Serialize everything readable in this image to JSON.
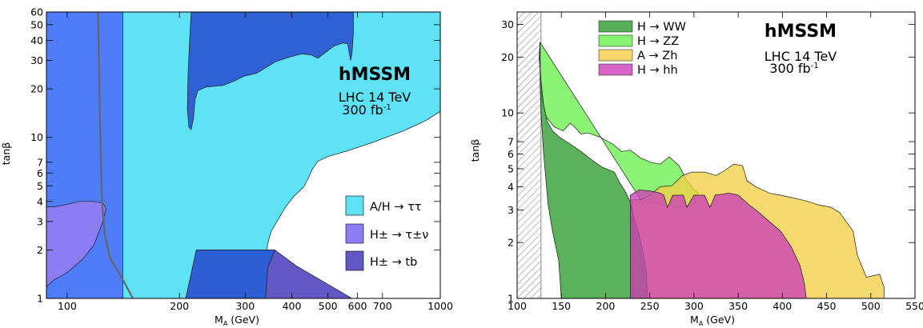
{
  "chart_data": [
    {
      "type": "area",
      "title": "hMSSM",
      "subtitle": [
        "LHC 14 TeV",
        "300 fb"
      ],
      "lumi_exp": "-1",
      "xlabel": "M",
      "xlabel_sub": "A",
      "xlabel_unit": " (GeV)",
      "ylabel": "tanβ",
      "xscale": "log",
      "yscale": "log",
      "xlim": [
        88,
        1000
      ],
      "ylim": [
        1,
        60
      ],
      "x_ticks": [
        100,
        200,
        300,
        400,
        500,
        600,
        700,
        1000
      ],
      "x_tick_labels": [
        "100",
        "200",
        "300",
        "400",
        "500",
        "600",
        "700",
        "1000"
      ],
      "y_ticks": [
        1,
        2,
        3,
        4,
        5,
        6,
        7,
        10,
        20,
        30,
        40,
        50,
        60
      ],
      "y_tick_labels": [
        "1",
        "2",
        "3",
        "4",
        "5",
        "6",
        "7",
        "10",
        "20",
        "30",
        "40",
        "50",
        "60"
      ],
      "legend_position": "bottom-right",
      "legend": [
        {
          "label": "A/H → ττ",
          "color": "#60E2F6"
        },
        {
          "label": "H± → τ±ν",
          "color": "#8C7DF4"
        },
        {
          "label": "H± → tb",
          "color": "#6257C4"
        }
      ],
      "regions": [
        {
          "name": "A/H → ττ",
          "color": "#60E2F6",
          "points": [
            [
              88,
              1
            ],
            [
              88,
              60
            ],
            [
              1000,
              60
            ],
            [
              1000,
              14.5
            ],
            [
              920,
              12.8
            ],
            [
              800,
              11
            ],
            [
              650,
              9.2
            ],
            [
              560,
              8.2
            ],
            [
              500,
              7.6
            ],
            [
              470,
              7.1
            ],
            [
              455,
              6.4
            ],
            [
              440,
              5.4
            ],
            [
              430,
              4.9
            ],
            [
              405,
              4.3
            ],
            [
              385,
              3.7
            ],
            [
              365,
              3
            ],
            [
              352,
              2.6
            ],
            [
              345,
              2.2
            ],
            [
              343,
              2
            ],
            [
              342,
              1.5
            ],
            [
              340,
              1
            ]
          ]
        },
        {
          "name": "low-mass exclusion",
          "color": "#4F7CF9",
          "points": [
            [
              88,
              1
            ],
            [
              88,
              60
            ],
            [
              141,
              60
            ],
            [
              141,
              1
            ]
          ]
        },
        {
          "name": "H± → τ±ν",
          "color": "#8C7DF4",
          "points": [
            [
              88,
              1.18
            ],
            [
              92,
              1.3
            ],
            [
              100,
              1.45
            ],
            [
              110,
              1.75
            ],
            [
              118,
              2.15
            ],
            [
              124,
              2.9
            ],
            [
              127,
              3.6
            ],
            [
              125,
              3.9
            ],
            [
              118,
              4
            ],
            [
              108,
              4
            ],
            [
              98,
              3.8
            ],
            [
              92,
              3.7
            ],
            [
              88,
              3.7
            ]
          ]
        },
        {
          "name": "H± → tb",
          "color": "#6257C4",
          "points": [
            [
              208,
              1
            ],
            [
              222,
              2
            ],
            [
              360,
              2
            ],
            [
              410,
              1.6
            ],
            [
              580,
              1
            ]
          ]
        },
        {
          "name": "H± → tb (overlap)",
          "color": "#2E5ED3",
          "points": [
            [
              208,
              1
            ],
            [
              222,
              2
            ],
            [
              360,
              2
            ],
            [
              345,
              1.55
            ],
            [
              340,
              1
            ]
          ]
        },
        {
          "name": "upper region",
          "color": "#2D61D4",
          "points": [
            [
              215,
              60
            ],
            [
              213,
              40
            ],
            [
              211,
              25
            ],
            [
              210,
              15
            ],
            [
              212,
              11.6
            ],
            [
              215,
              11.2
            ],
            [
              218,
              13
            ],
            [
              220,
              17
            ],
            [
              224,
              19.5
            ],
            [
              235,
              20.5
            ],
            [
              262,
              21
            ],
            [
              282,
              22.5
            ],
            [
              298,
              24
            ],
            [
              322,
              25
            ],
            [
              340,
              27
            ],
            [
              362,
              29.5
            ],
            [
              395,
              31.5
            ],
            [
              425,
              33
            ],
            [
              450,
              32.5
            ],
            [
              470,
              31
            ],
            [
              495,
              34
            ],
            [
              520,
              37
            ],
            [
              548,
              38.5
            ],
            [
              565,
              38
            ],
            [
              572,
              32
            ],
            [
              575,
              30
            ],
            [
              580,
              33
            ],
            [
              585,
              45
            ],
            [
              585,
              60
            ]
          ]
        }
      ],
      "curves": [
        {
          "name": "charged Higgs boundary",
          "color": "#666666",
          "points": [
            [
              121,
              60
            ],
            [
              122,
              20
            ],
            [
              123,
              8
            ],
            [
              124,
              4
            ],
            [
              126,
              2.5
            ],
            [
              130,
              1.8
            ],
            [
              140,
              1.35
            ],
            [
              150,
              1
            ]
          ]
        }
      ]
    },
    {
      "type": "area",
      "title": "hMSSM",
      "subtitle": [
        "LHC 14 TeV",
        "300 fb"
      ],
      "lumi_exp": "-1",
      "xlabel": "M",
      "xlabel_sub": "A",
      "xlabel_unit": " (GeV)",
      "ylabel": "tanβ",
      "xscale": "linear",
      "yscale": "log",
      "xlim": [
        100,
        550
      ],
      "ylim": [
        1,
        35
      ],
      "x_ticks": [
        100,
        150,
        200,
        250,
        300,
        350,
        400,
        450,
        500,
        550
      ],
      "x_tick_labels": [
        "100",
        "150",
        "200",
        "250",
        "300",
        "350",
        "400",
        "450",
        "500",
        "550"
      ],
      "y_ticks": [
        1,
        2,
        3,
        4,
        5,
        6,
        7,
        10,
        20,
        30
      ],
      "y_tick_labels": [
        "1",
        "2",
        "3",
        "4",
        "5",
        "6",
        "7",
        "10",
        "20",
        "30"
      ],
      "legend_position": "top-left",
      "legend": [
        {
          "label": "H → WW",
          "color": "#2E9B2E"
        },
        {
          "label": "H → ZZ",
          "color": "#6BF14E"
        },
        {
          "label": "A → Zh",
          "color": "#F4CE47"
        },
        {
          "label": "H → hh",
          "color": "#CB3FB9"
        }
      ],
      "hatched_excluded_region": {
        "x_from": 100,
        "x_to": 127
      },
      "regions": [
        {
          "name": "H → ZZ",
          "color": "#6BF14E",
          "points": [
            [
              126,
              24
            ],
            [
              125,
              20
            ],
            [
              128,
              12
            ],
            [
              133,
              9.5
            ],
            [
              142,
              8.4
            ],
            [
              152,
              8
            ],
            [
              160,
              8.8
            ],
            [
              166,
              8.3
            ],
            [
              172,
              7.7
            ],
            [
              180,
              7.8
            ],
            [
              194,
              7.4
            ],
            [
              208,
              6.8
            ],
            [
              218,
              6.2
            ],
            [
              228,
              6.3
            ],
            [
              240,
              5.7
            ],
            [
              252,
              5.4
            ],
            [
              262,
              5.3
            ],
            [
              272,
              5.8
            ],
            [
              283,
              5.2
            ],
            [
              291,
              4.4
            ],
            [
              299,
              3.9
            ],
            [
              305,
              3.7
            ],
            [
              300,
              3.2
            ],
            [
              280,
              3.1
            ],
            [
              250,
              3.3
            ],
            [
              240,
              3.4
            ]
          ]
        },
        {
          "name": "A → Zh",
          "color": "#F4CE47",
          "points": [
            [
              240,
              3.4
            ],
            [
              250,
              3.6
            ],
            [
              262,
              4.0
            ],
            [
              275,
              4.05
            ],
            [
              287,
              4.6
            ],
            [
              298,
              4.8
            ],
            [
              312,
              4.8
            ],
            [
              325,
              4.6
            ],
            [
              335,
              4.9
            ],
            [
              345,
              5.3
            ],
            [
              355,
              5.2
            ],
            [
              360,
              4.3
            ],
            [
              370,
              4.0
            ],
            [
              385,
              3.7
            ],
            [
              398,
              3.6
            ],
            [
              410,
              3.5
            ],
            [
              422,
              3.4
            ],
            [
              432,
              3.3
            ],
            [
              440,
              3.2
            ],
            [
              455,
              3.1
            ],
            [
              465,
              2.9
            ],
            [
              480,
              2.3
            ],
            [
              485,
              1.7
            ],
            [
              495,
              1.3
            ],
            [
              510,
              1.35
            ],
            [
              515,
              1.15
            ],
            [
              515,
              1
            ],
            [
              500,
              1
            ],
            [
              480,
              1
            ],
            [
              460,
              1
            ],
            [
              440,
              1
            ],
            [
              420,
              1
            ],
            [
              400,
              1
            ],
            [
              380,
              1
            ],
            [
              360,
              1
            ],
            [
              340,
              1
            ],
            [
              320,
              1
            ],
            [
              300,
              1
            ],
            [
              280,
              1
            ],
            [
              260,
              1
            ],
            [
              240,
              1
            ],
            [
              230,
              1
            ],
            [
              230,
              3.4
            ]
          ]
        },
        {
          "name": "H → WW",
          "color": "#2E9B2E",
          "points": [
            [
              126,
              24
            ],
            [
              125,
              20
            ],
            [
              127,
              15
            ],
            [
              130,
              11
            ],
            [
              134,
              9
            ],
            [
              140,
              8
            ],
            [
              148,
              7.4
            ],
            [
              160,
              6.8
            ],
            [
              172,
              6.2
            ],
            [
              184,
              5.6
            ],
            [
              196,
              5.1
            ],
            [
              210,
              4.8
            ],
            [
              216,
              4.2
            ],
            [
              222,
              3.8
            ],
            [
              228,
              3.3
            ],
            [
              232,
              2.7
            ],
            [
              238,
              2.2
            ],
            [
              243,
              1.7
            ],
            [
              246,
              1.4
            ],
            [
              247,
              1.1
            ],
            [
              247,
              1
            ],
            [
              150,
              1
            ],
            [
              147,
              1.6
            ],
            [
              140,
              2.3
            ],
            [
              135,
              3.2
            ],
            [
              130,
              6
            ],
            [
              127,
              10
            ],
            [
              126,
              14
            ]
          ]
        },
        {
          "name": "H → hh",
          "color": "#CB3FB9",
          "points": [
            [
              228,
              1
            ],
            [
              228,
              3.6
            ],
            [
              238,
              3.85
            ],
            [
              250,
              3.8
            ],
            [
              262,
              3.7
            ],
            [
              266,
              3.6
            ],
            [
              270,
              3.1
            ],
            [
              276,
              3.6
            ],
            [
              288,
              3.6
            ],
            [
              292,
              3.1
            ],
            [
              300,
              3.6
            ],
            [
              312,
              3.6
            ],
            [
              318,
              3.1
            ],
            [
              324,
              3.6
            ],
            [
              340,
              3.7
            ],
            [
              350,
              3.6
            ],
            [
              356,
              3.4
            ],
            [
              362,
              3.2
            ],
            [
              370,
              3.0
            ],
            [
              385,
              2.6
            ],
            [
              398,
              2.3
            ],
            [
              410,
              1.9
            ],
            [
              420,
              1.5
            ],
            [
              425,
              1.2
            ],
            [
              427,
              1
            ],
            [
              300,
              1
            ]
          ]
        }
      ]
    }
  ]
}
